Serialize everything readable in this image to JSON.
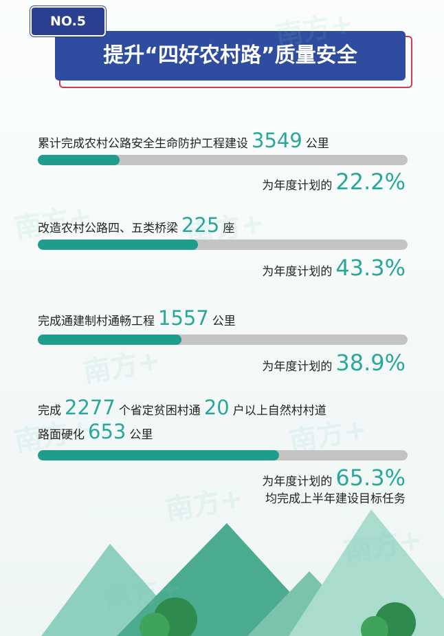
{
  "header": {
    "badge": "NO.5",
    "title": "提升“四好农村路”质量安全"
  },
  "watermark": "南方+",
  "items": [
    {
      "lines": [
        [
          "累计完成农村公路安全生命防护工程建设",
          "3549",
          "公里"
        ]
      ],
      "plan_label": "为年度计划的",
      "percent": 22.2,
      "percent_label": "22.2%"
    },
    {
      "lines": [
        [
          "改造农村公路四、五类桥梁",
          "225",
          "座"
        ]
      ],
      "plan_label": "为年度计划的",
      "percent": 43.3,
      "percent_label": "43.3%"
    },
    {
      "lines": [
        [
          "完成通建制村通畅工程",
          "1557",
          "公里"
        ]
      ],
      "plan_label": "为年度计划的",
      "percent": 38.9,
      "percent_label": "38.9%"
    },
    {
      "lines": [
        [
          "完成",
          "2277",
          "个省定贫困村通",
          "20",
          "户以上自然村村道"
        ],
        [
          "路面硬化",
          "653",
          "公里"
        ]
      ],
      "plan_label": "为年度计划的",
      "percent": 65.3,
      "percent_label": "65.3%",
      "note": "均完成上半年建设目标任务"
    }
  ]
}
